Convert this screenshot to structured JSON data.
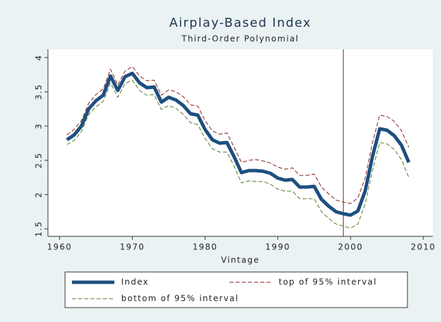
{
  "chart_data": {
    "type": "line",
    "title": "Airplay-Based Index",
    "subtitle": "Third-Order Polynomial",
    "xlabel": "Vintage",
    "x": [
      1961,
      1962,
      1963,
      1964,
      1965,
      1966,
      1967,
      1968,
      1969,
      1970,
      1971,
      1972,
      1973,
      1974,
      1975,
      1976,
      1977,
      1978,
      1979,
      1980,
      1981,
      1982,
      1983,
      1984,
      1985,
      1986,
      1987,
      1988,
      1989,
      1990,
      1991,
      1992,
      1993,
      1994,
      1995,
      1996,
      1997,
      1998,
      1999,
      2000,
      2001,
      2002,
      2003,
      2004,
      2005,
      2006,
      2007,
      2008
    ],
    "series": [
      {
        "name": "Index",
        "color": "#1d4f80",
        "style": "solid",
        "width": 5,
        "values": [
          2.8,
          2.87,
          3.0,
          3.25,
          3.37,
          3.45,
          3.73,
          3.52,
          3.72,
          3.77,
          3.63,
          3.56,
          3.57,
          3.35,
          3.42,
          3.38,
          3.3,
          3.18,
          3.16,
          2.95,
          2.8,
          2.75,
          2.76,
          2.55,
          2.32,
          2.35,
          2.35,
          2.34,
          2.31,
          2.24,
          2.21,
          2.22,
          2.11,
          2.11,
          2.12,
          1.93,
          1.83,
          1.75,
          1.72,
          1.7,
          1.76,
          2.05,
          2.55,
          2.96,
          2.94,
          2.86,
          2.72,
          2.47
        ]
      },
      {
        "name": "top of 95% interval",
        "color": "#8b1a1a",
        "style": "dashed",
        "width": 1,
        "values": [
          2.87,
          2.95,
          3.08,
          3.33,
          3.46,
          3.54,
          3.83,
          3.6,
          3.8,
          3.87,
          3.73,
          3.66,
          3.67,
          3.45,
          3.53,
          3.5,
          3.43,
          3.31,
          3.29,
          3.08,
          2.93,
          2.88,
          2.9,
          2.69,
          2.47,
          2.5,
          2.51,
          2.49,
          2.46,
          2.4,
          2.37,
          2.39,
          2.28,
          2.28,
          2.3,
          2.11,
          2.01,
          1.92,
          1.89,
          1.87,
          1.95,
          2.24,
          2.75,
          3.16,
          3.14,
          3.07,
          2.93,
          2.69
        ]
      },
      {
        "name": "bottom of 95% interval",
        "color": "#4a7a22",
        "style": "dashed",
        "width": 1,
        "values": [
          2.73,
          2.79,
          2.92,
          3.17,
          3.28,
          3.36,
          3.63,
          3.42,
          3.62,
          3.67,
          3.52,
          3.45,
          3.46,
          3.24,
          3.3,
          3.26,
          3.17,
          3.05,
          3.02,
          2.82,
          2.67,
          2.62,
          2.62,
          2.41,
          2.17,
          2.2,
          2.19,
          2.19,
          2.15,
          2.08,
          2.05,
          2.05,
          1.94,
          1.94,
          1.94,
          1.75,
          1.65,
          1.57,
          1.54,
          1.51,
          1.57,
          1.86,
          2.35,
          2.76,
          2.74,
          2.66,
          2.51,
          2.25
        ]
      }
    ],
    "vline": 1999,
    "vline_color": "#8b1a3a",
    "xlim": [
      1958.4,
      2011.3
    ],
    "xticks": [
      1960,
      1970,
      1980,
      1990,
      2000,
      2010
    ],
    "ylim": [
      1.39,
      4.12
    ],
    "yticks": [
      1.5,
      2,
      2.5,
      3,
      3.5,
      4
    ],
    "grid": false
  }
}
